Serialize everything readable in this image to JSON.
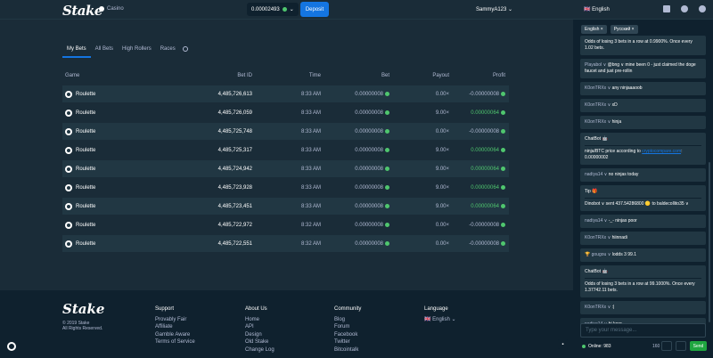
{
  "header": {
    "logo": "Stake",
    "casino_label": "Casino",
    "balance": "0.00002493",
    "deposit_label": "Deposit",
    "username": "SammyA123"
  },
  "right_header": {
    "language": "English",
    "icons": [
      "mail-icon",
      "bell-icon",
      "users-icon"
    ]
  },
  "bets": {
    "tabs": [
      "My Bets",
      "All Bets",
      "High Rollers",
      "Races"
    ],
    "columns": [
      "Game",
      "Bet ID",
      "Time",
      "Bet",
      "Payout",
      "Profit"
    ],
    "rows": [
      {
        "game": "Roulette",
        "id": "4,485,726,613",
        "time": "8:33 AM",
        "bet": "0.00000008",
        "payout": "0.00×",
        "profit": "-0.00000008",
        "win": false
      },
      {
        "game": "Roulette",
        "id": "4,485,726,059",
        "time": "8:33 AM",
        "bet": "0.00000008",
        "payout": "9.00×",
        "profit": "0.00000064",
        "win": true
      },
      {
        "game": "Roulette",
        "id": "4,485,725,748",
        "time": "8:33 AM",
        "bet": "0.00000008",
        "payout": "0.00×",
        "profit": "-0.00000008",
        "win": false
      },
      {
        "game": "Roulette",
        "id": "4,485,725,317",
        "time": "8:33 AM",
        "bet": "0.00000008",
        "payout": "9.00×",
        "profit": "0.00000064",
        "win": true
      },
      {
        "game": "Roulette",
        "id": "4,485,724,942",
        "time": "8:33 AM",
        "bet": "0.00000008",
        "payout": "9.00×",
        "profit": "0.00000064",
        "win": true
      },
      {
        "game": "Roulette",
        "id": "4,485,723,928",
        "time": "8:33 AM",
        "bet": "0.00000008",
        "payout": "9.00×",
        "profit": "0.00000064",
        "win": true
      },
      {
        "game": "Roulette",
        "id": "4,485,723,451",
        "time": "8:33 AM",
        "bet": "0.00000008",
        "payout": "9.00×",
        "profit": "0.00000064",
        "win": true
      },
      {
        "game": "Roulette",
        "id": "4,485,722,972",
        "time": "8:32 AM",
        "bet": "0.00000008",
        "payout": "0.00×",
        "profit": "-0.00000008",
        "win": false
      },
      {
        "game": "Roulette",
        "id": "4,485,722,551",
        "time": "8:32 AM",
        "bet": "0.00000008",
        "payout": "0.00×",
        "profit": "-0.00000008",
        "win": false
      }
    ]
  },
  "footer": {
    "logo": "Stake",
    "copyright": "© 2019 Stake",
    "rights": "All Rights Reserved.",
    "support": {
      "title": "Support",
      "links": [
        "Provably Fair",
        "Affiliate",
        "Gamble Aware",
        "Terms of Service"
      ]
    },
    "about": {
      "title": "About Us",
      "links": [
        "Home",
        "API",
        "Design",
        "Old Stake",
        "Change Log"
      ]
    },
    "community": {
      "title": "Community",
      "links": [
        "Blog",
        "Forum",
        "Facebook",
        "Twitter",
        "Bitcointalk"
      ]
    },
    "language": {
      "title": "Language",
      "value": "English"
    }
  },
  "chat": {
    "tabs": [
      "English",
      "Русский"
    ],
    "messages": [
      {
        "type": "text",
        "name": "",
        "text": "Odds of losing 3 bets in a row at 0.9900%. Once every 1.02 bets."
      },
      {
        "type": "text",
        "name": "Playabol ∨",
        "text": "@bng ∨  mine been 0 - just claimed the doge faucet and just pre-rollin"
      },
      {
        "type": "text",
        "name": "K0onTRXx ∨",
        "text": "any ninjaaaoob"
      },
      {
        "type": "text",
        "name": "K0onTRXx ∨",
        "text": "xD"
      },
      {
        "type": "text",
        "name": "K0onTRXx ∨",
        "text": "hinja"
      },
      {
        "type": "bot",
        "header": "ChatBot 🤖",
        "text": "ninja/BTC price according to ",
        "link": "cryptocompare.com",
        "tail": ": 0.00000002"
      },
      {
        "type": "text",
        "name": "nadiya14 ∨",
        "text": "no ninjas today"
      },
      {
        "type": "bot",
        "header": "Tip 🎁",
        "text": "Dinobot ∨  sent 437.54286800 🟡 to baldecollito35 ∨",
        "link": "",
        "tail": ""
      },
      {
        "type": "text",
        "name": "nadiya14 ∨",
        "text": "-_- ninjas poor"
      },
      {
        "type": "text",
        "name": "K0onTRXx ∨",
        "text": "hiinnadi"
      },
      {
        "type": "text",
        "name": "🏆 gougou ∨",
        "text": "lodds 3 99.1"
      },
      {
        "type": "bot",
        "header": "ChatBot 🤖",
        "text": "Odds of losing 3 bets in a row at 99.1000%. Once every 1.37742.11 bets.",
        "link": "",
        "tail": ""
      },
      {
        "type": "text",
        "name": "K0onTRXx ∨",
        "text": ":|"
      },
      {
        "type": "text",
        "name": "nadiya14 ∨",
        "text": "hi koor"
      }
    ],
    "input_placeholder": "Type your message...",
    "online_label": "Online: 983",
    "count": "160",
    "send_label": "Send"
  },
  "colors": {
    "bg": "#1a2c38",
    "dark": "#0f212e",
    "accent": "#1475e1",
    "win": "#4fc66e"
  }
}
